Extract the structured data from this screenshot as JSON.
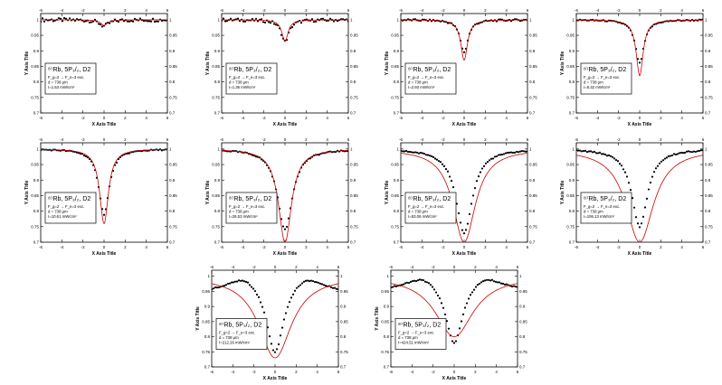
{
  "chart_data": [
    {
      "type": "line",
      "id": 1,
      "title": "⁸⁷Rb, 5P₃/₂, D2",
      "lines": [
        "F_g=2 → F_e=3 exc.",
        "d = 738 μm",
        "I=1.53 mW/cm²"
      ],
      "xlabel": "X Axis Title",
      "ylabel": "Y Axis Title",
      "xlim": [
        -6,
        6
      ],
      "ylim": [
        0.7,
        1.02
      ],
      "xticks": [
        -6,
        -4,
        -2,
        0,
        2,
        4,
        6
      ],
      "yticks": [
        0.7,
        0.75,
        0.8,
        0.85,
        0.9,
        0.95,
        1
      ],
      "series": [
        {
          "kind": "points",
          "width": 0.55,
          "amp": 0.02,
          "noise": 0.006
        },
        {
          "kind": "fit",
          "width": 0.4,
          "amp": 0.018
        }
      ]
    },
    {
      "type": "line",
      "id": 2,
      "title": "⁸⁷Rb, 5P₃/₂, D2",
      "lines": [
        "F_g=2 → F_e=3 exc.",
        "d = 738 μm",
        "I=1.36 mW/cm²"
      ],
      "xlabel": "X Axis Title",
      "ylabel": "Y Axis Title",
      "xlim": [
        -6,
        6
      ],
      "ylim": [
        0.7,
        1.02
      ],
      "xticks": [
        -6,
        -4,
        -2,
        0,
        2,
        4,
        6
      ],
      "yticks": [
        0.7,
        0.75,
        0.8,
        0.85,
        0.9,
        0.95,
        1
      ],
      "series": [
        {
          "kind": "points",
          "width": 0.45,
          "amp": 0.07,
          "noise": 0.005
        },
        {
          "kind": "fit",
          "width": 0.35,
          "amp": 0.07
        }
      ]
    },
    {
      "type": "line",
      "id": 3,
      "title": "⁸⁷Rb, 5P₃/₂, D2",
      "lines": [
        "F_g=2 → F_e=3 exc.",
        "d = 738 μm",
        "I=2.93 mW/cm²"
      ],
      "xlabel": "X Axis Title",
      "ylabel": "Y Axis Title",
      "xlim": [
        -6,
        6
      ],
      "ylim": [
        0.7,
        1.02
      ],
      "xticks": [
        -6,
        -4,
        -2,
        0,
        2,
        4,
        6
      ],
      "yticks": [
        0.7,
        0.75,
        0.8,
        0.85,
        0.9,
        0.95,
        1
      ],
      "series": [
        {
          "kind": "points",
          "width": 0.45,
          "amp": 0.105,
          "noise": 0.003
        },
        {
          "kind": "fit",
          "width": 0.38,
          "amp": 0.13
        }
      ]
    },
    {
      "type": "line",
      "id": 4,
      "title": "⁸⁷Rb, 5P₃/₂, D2",
      "lines": [
        "F_g=2 → F_e=3 exc.",
        "d = 738 μm",
        "I=5.32 mW/cm²"
      ],
      "xlabel": "X Axis Title",
      "ylabel": "Y Axis Title",
      "xlim": [
        -6,
        6
      ],
      "ylim": [
        0.7,
        1.02
      ],
      "xticks": [
        -6,
        -4,
        -2,
        0,
        2,
        4,
        6
      ],
      "yticks": [
        0.7,
        0.75,
        0.8,
        0.85,
        0.9,
        0.95,
        1
      ],
      "series": [
        {
          "kind": "points",
          "width": 0.5,
          "amp": 0.14,
          "noise": 0.002
        },
        {
          "kind": "fit",
          "width": 0.4,
          "amp": 0.18
        }
      ]
    },
    {
      "type": "line",
      "id": 5,
      "title": "⁸⁷Rb, 5P₃/₂, D2",
      "lines": [
        "F_g=2 → F_e=3 exc.",
        "d = 738 μm",
        "I=10.61 mW/cm²"
      ],
      "xlabel": "X Axis Title",
      "ylabel": "Y Axis Title",
      "xlim": [
        -6,
        6
      ],
      "ylim": [
        0.7,
        1.02
      ],
      "xticks": [
        -6,
        -4,
        -2,
        0,
        2,
        4,
        6
      ],
      "yticks": [
        0.7,
        0.75,
        0.8,
        0.85,
        0.9,
        0.95,
        1
      ],
      "series": [
        {
          "kind": "points",
          "width": 0.6,
          "amp": 0.21,
          "noise": 0.002
        },
        {
          "kind": "fit",
          "width": 0.5,
          "amp": 0.24
        }
      ]
    },
    {
      "type": "line",
      "id": 6,
      "title": "⁸⁷Rb, 5P₃/₂, D2",
      "lines": [
        "F_g=2 → F_e=3 exc.",
        "d = 738 μm",
        "I=26.53 mW/cm²"
      ],
      "xlabel": "X Axis Title",
      "ylabel": "Y Axis Title",
      "xlim": [
        -6,
        6
      ],
      "ylim": [
        0.7,
        1.02
      ],
      "xticks": [
        -6,
        -4,
        -2,
        0,
        2,
        4,
        6
      ],
      "yticks": [
        0.7,
        0.75,
        0.8,
        0.85,
        0.9,
        0.95,
        1
      ],
      "series": [
        {
          "kind": "points",
          "width": 0.85,
          "amp": 0.26,
          "noise": 0.002
        },
        {
          "kind": "fit",
          "width": 0.75,
          "amp": 0.3
        }
      ]
    },
    {
      "type": "line",
      "id": 7,
      "title": "⁸⁷Rb, 5P₃/₂, D2",
      "lines": [
        "F_g=2 → F_e=3 exc.",
        "d = 738 μm",
        "I=53.06 mW/cm²"
      ],
      "xlabel": "X Axis Title",
      "ylabel": "Y Axis Title",
      "xlim": [
        -6,
        6
      ],
      "ylim": [
        0.7,
        1.02
      ],
      "xticks": [
        -6,
        -4,
        -2,
        0,
        2,
        4,
        6
      ],
      "yticks": [
        0.7,
        0.75,
        0.8,
        0.85,
        0.9,
        0.95,
        1
      ],
      "series": [
        {
          "kind": "points",
          "width": 0.95,
          "amp": 0.27,
          "noise": 0.002
        },
        {
          "kind": "fit",
          "width": 1.3,
          "amp": 0.3
        }
      ]
    },
    {
      "type": "line",
      "id": 8,
      "title": "⁸⁷Rb, 5P₃/₂, D2",
      "lines": [
        "F_g=2 → F_e=3 exc.",
        "d = 738 μm",
        "I=106.13 mW/cm²"
      ],
      "xlabel": "X Axis Title",
      "ylabel": "Y Axis Title",
      "xlim": [
        -6,
        6
      ],
      "ylim": [
        0.7,
        1.02
      ],
      "xticks": [
        -6,
        -4,
        -2,
        0,
        2,
        4,
        6
      ],
      "yticks": [
        0.7,
        0.75,
        0.8,
        0.85,
        0.9,
        0.95,
        1
      ],
      "series": [
        {
          "kind": "points",
          "width": 0.9,
          "amp": 0.25,
          "noise": 0.002
        },
        {
          "kind": "fit",
          "width": 1.6,
          "amp": 0.3
        }
      ]
    },
    {
      "type": "line",
      "id": 9,
      "title": "⁸⁷Rb, 5P₃/₂, D2",
      "lines": [
        "F_g=2 → F_e=3 exc.",
        "d = 738 μm",
        "I=212.26 mW/cm²"
      ],
      "xlabel": "X Axis Title",
      "ylabel": "Y Axis Title",
      "xlim": [
        -6,
        6
      ],
      "ylim": [
        0.7,
        1.02
      ],
      "xticks": [
        -6,
        -4,
        -2,
        0,
        2,
        4,
        6
      ],
      "yticks": [
        0.7,
        0.75,
        0.8,
        0.85,
        0.9,
        0.95,
        1
      ],
      "series": [
        {
          "kind": "points",
          "width": 1.0,
          "amp": 0.25,
          "noise": 0.002,
          "bump": 0.035
        },
        {
          "kind": "fit",
          "width": 1.9,
          "amp": 0.27
        }
      ]
    },
    {
      "type": "line",
      "id": 10,
      "title": "⁸⁷Rb, 5P₃/₂, D2",
      "lines": [
        "F_g=2 → F_e=3 exc.",
        "d = 738 μm",
        "I=424.51 mW/cm²"
      ],
      "xlabel": "X Axis Title",
      "ylabel": "Y Axis Title",
      "xlim": [
        -6,
        6
      ],
      "ylim": [
        0.7,
        1.02
      ],
      "xticks": [
        -6,
        -4,
        -2,
        0,
        2,
        4,
        6
      ],
      "yticks": [
        0.7,
        0.75,
        0.8,
        0.85,
        0.9,
        0.95,
        1
      ],
      "series": [
        {
          "kind": "points",
          "width": 1.0,
          "amp": 0.22,
          "noise": 0.002,
          "bump": 0.03
        },
        {
          "kind": "fit",
          "width": 2.2,
          "amp": 0.2
        }
      ]
    }
  ],
  "colors": {
    "points": "#000000",
    "fit": "#cc0000",
    "axis": "#000000"
  }
}
